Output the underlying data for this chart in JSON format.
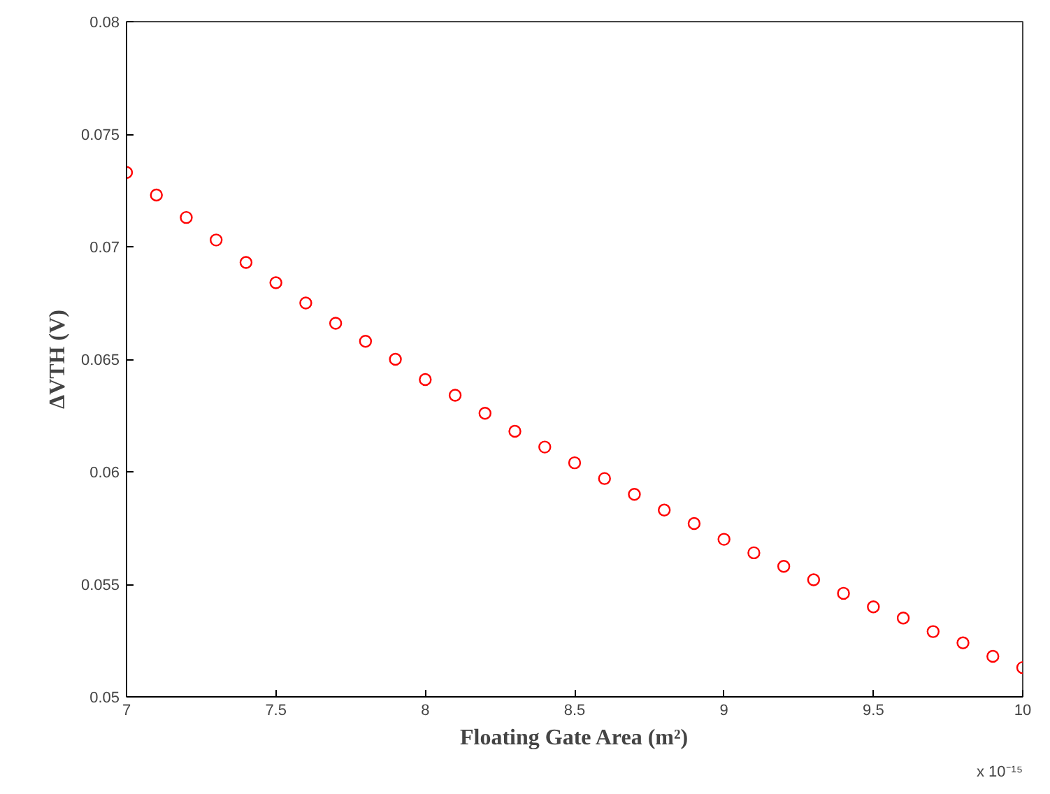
{
  "chart_data": {
    "type": "scatter",
    "xlabel": "Floating Gate Area (m²)",
    "ylabel": "ΔVTH (V)",
    "annotations": [
      "x 10⁻¹⁵"
    ],
    "x": [
      7.0,
      7.1,
      7.2,
      7.3,
      7.4,
      7.5,
      7.6,
      7.7,
      7.8,
      7.9,
      8.0,
      8.1,
      8.2,
      8.3,
      8.4,
      8.5,
      8.6,
      8.7,
      8.8,
      8.9,
      9.0,
      9.1,
      9.2,
      9.3,
      9.4,
      9.5,
      9.6,
      9.7,
      9.8,
      9.9,
      10.0
    ],
    "series": [
      {
        "color": "#ff0000",
        "values": [
          0.0733,
          0.0723,
          0.0713,
          0.0703,
          0.0693,
          0.0684,
          0.0675,
          0.0666,
          0.0658,
          0.065,
          0.0641,
          0.0634,
          0.0626,
          0.0618,
          0.0611,
          0.0604,
          0.0597,
          0.059,
          0.0583,
          0.0577,
          0.057,
          0.0564,
          0.0558,
          0.0552,
          0.0546,
          0.054,
          0.0535,
          0.0529,
          0.0524,
          0.0518,
          0.0513
        ]
      }
    ],
    "xlim": [
      7,
      10
    ],
    "xticks": [
      7,
      7.5,
      8,
      8.5,
      9,
      9.5,
      10
    ],
    "ylim": [
      0.05,
      0.08
    ],
    "yticks": [
      0.05,
      0.055,
      0.06,
      0.065,
      0.07,
      0.075,
      0.08
    ],
    "marker": "circle",
    "grid": false
  }
}
